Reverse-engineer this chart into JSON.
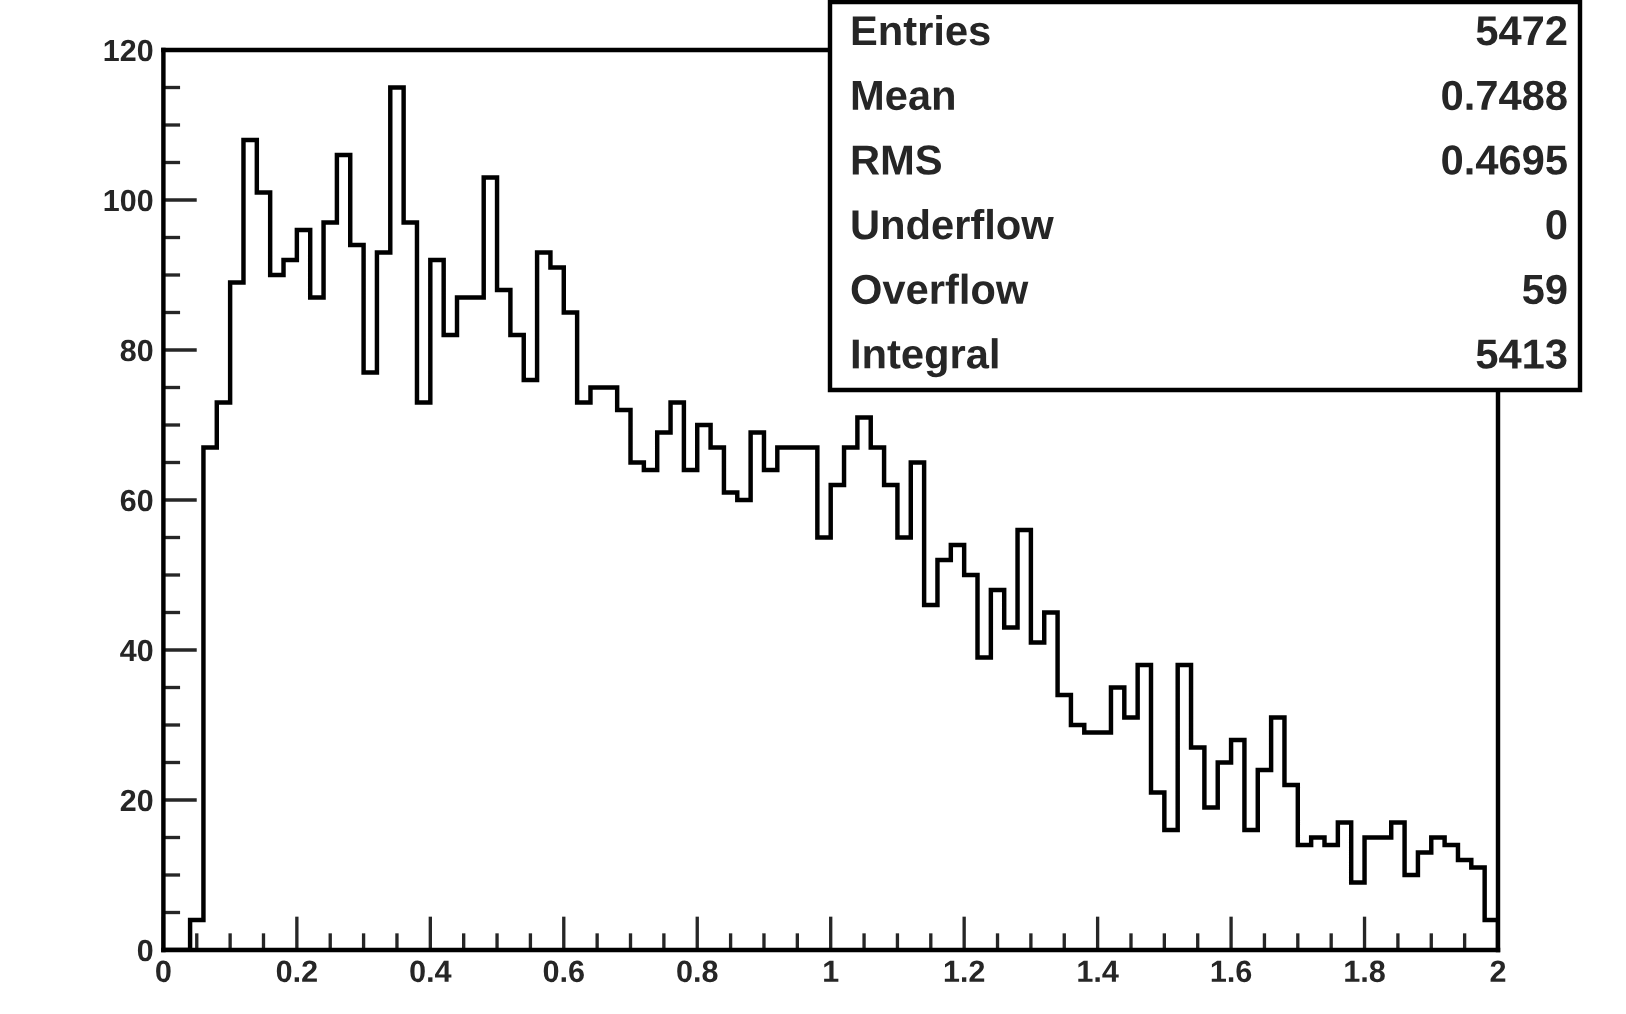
{
  "chart_data": {
    "type": "histogram",
    "bins": [
      0,
      0.02,
      0.04,
      0.06,
      0.08,
      0.1,
      0.12,
      0.14,
      0.16,
      0.18,
      0.2,
      0.22,
      0.24,
      0.26,
      0.28,
      0.3,
      0.32,
      0.34,
      0.36,
      0.38,
      0.4,
      0.42,
      0.44,
      0.46,
      0.48,
      0.5,
      0.52,
      0.54,
      0.56,
      0.58,
      0.6,
      0.62,
      0.64,
      0.66,
      0.68,
      0.7,
      0.72,
      0.74,
      0.76,
      0.78,
      0.8,
      0.82,
      0.84,
      0.86,
      0.88,
      0.9,
      0.92,
      0.94,
      0.96,
      0.98,
      1,
      1.02,
      1.04,
      1.06,
      1.08,
      1.1,
      1.12,
      1.14,
      1.16,
      1.18,
      1.2,
      1.22,
      1.24,
      1.26,
      1.28,
      1.3,
      1.32,
      1.34,
      1.36,
      1.38,
      1.4,
      1.42,
      1.44,
      1.46,
      1.48,
      1.5,
      1.52,
      1.54,
      1.56,
      1.58,
      1.6,
      1.62,
      1.64,
      1.66,
      1.68,
      1.7,
      1.72,
      1.74,
      1.76,
      1.78,
      1.8,
      1.82,
      1.84,
      1.86,
      1.88,
      1.9,
      1.92,
      1.94,
      1.96,
      1.98,
      2
    ],
    "values": [
      0,
      0,
      4,
      67,
      73,
      89,
      108,
      101,
      90,
      92,
      96,
      87,
      97,
      106,
      94,
      77,
      93,
      115,
      97,
      73,
      92,
      82,
      87,
      87,
      103,
      88,
      82,
      76,
      93,
      91,
      85,
      73,
      75,
      75,
      72,
      65,
      64,
      69,
      73,
      64,
      70,
      67,
      61,
      60,
      69,
      64,
      67,
      67,
      67,
      55,
      62,
      67,
      71,
      67,
      62,
      55,
      65,
      46,
      52,
      54,
      50,
      39,
      48,
      43,
      56,
      41,
      45,
      34,
      30,
      29,
      29,
      35,
      31,
      38,
      21,
      16,
      38,
      27,
      19,
      25,
      28,
      16,
      24,
      31,
      22,
      14,
      15,
      14,
      17,
      9,
      15,
      15,
      17,
      10,
      13,
      15,
      14,
      12,
      11,
      4
    ],
    "color": "#000000",
    "xlim": [
      0,
      2
    ],
    "ylim": [
      0,
      120
    ],
    "xticks": [
      0,
      0.2,
      0.4,
      0.6,
      0.8,
      1,
      1.2,
      1.4,
      1.6,
      1.8,
      2
    ],
    "yticks": [
      0,
      20,
      40,
      60,
      80,
      100,
      120
    ],
    "grid": false,
    "annotations": [
      "Entries",
      "5472",
      "Mean",
      "0.7488",
      "RMS",
      "0.4695",
      "Underflow",
      "0",
      "Overflow",
      "59",
      "Integral",
      "5413"
    ]
  }
}
